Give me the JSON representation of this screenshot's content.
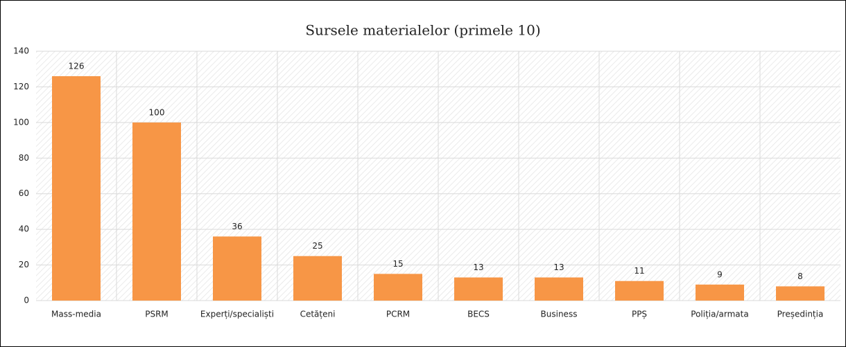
{
  "chart_data": {
    "type": "bar",
    "title": "Sursele materialelor (primele 10)",
    "categories": [
      "Mass-media",
      "PSRM",
      "Experți/specialiști",
      "Cetățeni",
      "PCRM",
      "BECS",
      "Business",
      "PPȘ",
      "Poliția/armata",
      "Președinția"
    ],
    "values": [
      126,
      100,
      36,
      25,
      15,
      13,
      13,
      11,
      9,
      8
    ],
    "color": "#f79646",
    "ylim": [
      0,
      140
    ],
    "yticks": [
      0,
      20,
      40,
      60,
      80,
      100,
      120,
      140
    ],
    "grid": true
  }
}
